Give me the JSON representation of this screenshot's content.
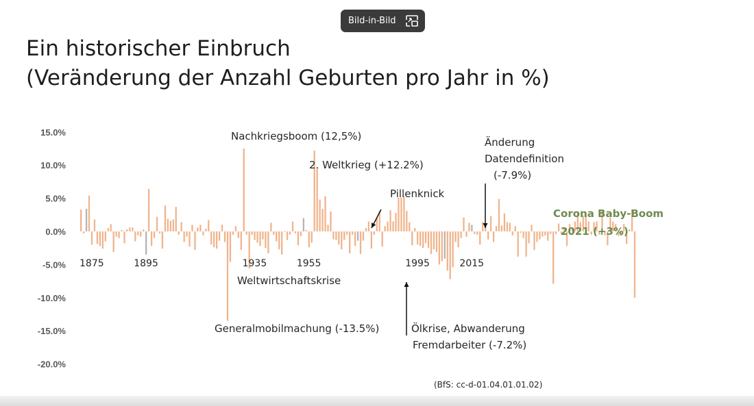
{
  "pip_button": {
    "label": "Bild-in-Bild",
    "icon": "picture-in-picture-icon"
  },
  "title_line1": "Ein historischer Einbruch",
  "title_line2": "(Veränderung der Anzahl Geburten pro Jahr in %)",
  "colors": {
    "bar": "#f0b48c",
    "gray_bar": "#b4b4b4",
    "corona": "#6e8b4f",
    "text": "#262626"
  },
  "chart_data": {
    "type": "bar",
    "ylim": [
      -20,
      15
    ],
    "yticks": [
      "15.0%",
      "10.0%",
      "5.0%",
      "0.0%",
      "-5.0%",
      "-10.0%",
      "-15.0%",
      "-20.0%"
    ],
    "ytick_values": [
      15,
      10,
      5,
      0,
      -5,
      -10,
      -15,
      -20
    ],
    "xticks": [
      "1875",
      "1895",
      "1935",
      "1955",
      "1995",
      "2015"
    ],
    "xtick_years": [
      1875,
      1895,
      1935,
      1955,
      1995,
      2015
    ],
    "x_start": 1871,
    "values": [
      3.3,
      -0.3,
      3.4,
      5.4,
      -2.0,
      1.8,
      -1.9,
      -2.2,
      -2.6,
      -1.5,
      0.5,
      1.1,
      -3.1,
      -0.8,
      -1.0,
      0.2,
      -1.8,
      0.3,
      0.6,
      0.6,
      -1.5,
      -0.6,
      -0.8,
      0.3,
      -3.5,
      6.4,
      -2.2,
      -1.0,
      2.2,
      -0.3,
      -2.6,
      3.9,
      1.9,
      1.6,
      1.8,
      3.7,
      -0.5,
      1.4,
      -1.6,
      -0.8,
      -2.3,
      1.0,
      -2.8,
      0.6,
      1.0,
      -0.6,
      0.4,
      1.7,
      -2.0,
      -2.4,
      -2.6,
      -1.4,
      1.0,
      -1.6,
      -13.5,
      -4.6,
      -0.5,
      0.8,
      -1.0,
      -2.8,
      12.5,
      -0.5,
      -5.6,
      -0.5,
      -1.3,
      -1.7,
      -2.2,
      -1.2,
      -2.5,
      -3.3,
      1.3,
      -0.5,
      -1.5,
      -2.7,
      -3.5,
      0.1,
      -1.3,
      -0.5,
      1.5,
      -0.3,
      -2.1,
      -0.7,
      2.0,
      0.2,
      -2.4,
      -1.7,
      12.2,
      9.5,
      4.8,
      3.4,
      5.3,
      1.0,
      3.0,
      -1.2,
      -1.3,
      -2.0,
      -2.7,
      -1.3,
      -0.5,
      -3.3,
      -0.5,
      -2.2,
      -1.4,
      -3.4,
      -1.4,
      0.5,
      1.5,
      -2.6,
      -0.5,
      2.0,
      3.1,
      -2.3,
      0.8,
      1.5,
      3.2,
      1.5,
      2.8,
      5.1,
      5.1,
      5.3,
      3.1,
      1.4,
      -2.1,
      0.5,
      -2.0,
      -2.2,
      -2.5,
      -1.8,
      -2.5,
      -3.4,
      -2.7,
      -3.1,
      -5.0,
      -4.5,
      -4.1,
      -5.9,
      -7.2,
      -5.4,
      -1.6,
      -2.4,
      -1.0,
      2.1,
      -0.8,
      1.3,
      1.0,
      -0.4,
      -0.5,
      -2.0,
      1.4,
      1.0,
      -1.2,
      2.3,
      -1.6,
      0.8,
      4.9,
      0.9,
      2.7,
      1.4,
      1.3,
      -0.6,
      0.8,
      -3.8,
      -0.2,
      -1.0,
      -3.8,
      -1.8,
      1.0,
      -2.8,
      -1.6,
      -1.2,
      -0.8,
      -0.6,
      -1.4,
      -0.4,
      -7.9,
      -0.4,
      1.2,
      -0.5,
      0.6,
      -2.2,
      1.1,
      0.6,
      1.5,
      3.0,
      1.4,
      2.4,
      2.9,
      1.5,
      -0.5,
      1.4,
      1.5,
      -0.5,
      3.2,
      -0.6,
      -2.1,
      2.1,
      1.5,
      1.1,
      -0.7,
      -0.7,
      1.1,
      -1.9,
      0.3,
      3.3,
      -10.0
    ],
    "gray_years": [
      1873,
      1895,
      1953,
      1973,
      2005,
      2015
    ],
    "annotations": [
      {
        "text": "Nachkriegsboom (12,5%)"
      },
      {
        "text": "2. Weltkrieg (+12.2%)"
      },
      {
        "text": "Pillenknick"
      },
      {
        "text": "Änderung"
      },
      {
        "text": "Datendefinition"
      },
      {
        "text": "(-7.9%)"
      },
      {
        "text": "Corona Baby-Boom"
      },
      {
        "text": "2021 (+3%)"
      },
      {
        "text": "Weltwirtschaftskrise"
      },
      {
        "text": "Generalmobilmachung (-13.5%)"
      },
      {
        "text": "Ölkrise, Abwanderung"
      },
      {
        "text": "Fremdarbeiter (-7.2%)"
      }
    ],
    "source": "(BfS: cc-d-01.04.01.01.02)"
  }
}
